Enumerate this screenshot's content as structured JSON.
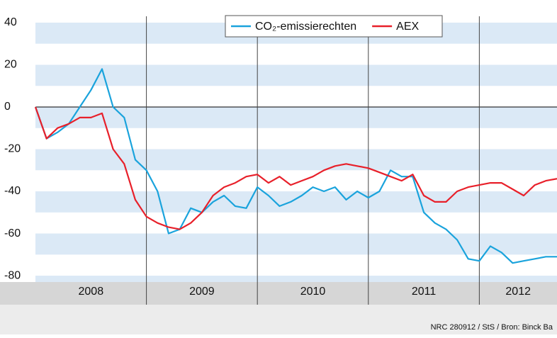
{
  "chart_data": {
    "type": "line",
    "x": [
      2008.0,
      2008.1,
      2008.2,
      2008.3,
      2008.4,
      2008.5,
      2008.6,
      2008.7,
      2008.8,
      2008.9,
      2009.0,
      2009.1,
      2009.2,
      2009.3,
      2009.4,
      2009.5,
      2009.6,
      2009.7,
      2009.8,
      2009.9,
      2010.0,
      2010.1,
      2010.2,
      2010.3,
      2010.4,
      2010.5,
      2010.6,
      2010.7,
      2010.8,
      2010.9,
      2011.0,
      2011.1,
      2011.2,
      2011.3,
      2011.4,
      2011.5,
      2011.6,
      2011.7,
      2011.8,
      2011.9,
      2012.0,
      2012.1,
      2012.2,
      2012.3,
      2012.4,
      2012.5,
      2012.6,
      2012.7
    ],
    "series": [
      {
        "name": "CO₂-emissierechten",
        "color": "#1aa3dc",
        "values": [
          0,
          -15,
          -12,
          -8,
          0,
          8,
          18,
          0,
          -5,
          -25,
          -30,
          -40,
          -60,
          -58,
          -48,
          -50,
          -45,
          -42,
          -47,
          -48,
          -38,
          -42,
          -47,
          -45,
          -42,
          -38,
          -40,
          -38,
          -44,
          -40,
          -43,
          -40,
          -30,
          -33,
          -33,
          -50,
          -55,
          -58,
          -63,
          -72,
          -73,
          -66,
          -69,
          -74,
          -73,
          -72,
          -71,
          -71
        ]
      },
      {
        "name": "AEX",
        "color": "#e8202a",
        "values": [
          0,
          -15,
          -10,
          -8,
          -5,
          -5,
          -3,
          -20,
          -27,
          -44,
          -52,
          -55,
          -57,
          -58,
          -55,
          -50,
          -42,
          -38,
          -36,
          -33,
          -32,
          -36,
          -33,
          -37,
          -35,
          -33,
          -30,
          -28,
          -27,
          -28,
          -29,
          -31,
          -33,
          -35,
          -32,
          -42,
          -45,
          -45,
          -40,
          -38,
          -37,
          -36,
          -36,
          -39,
          -42,
          -37,
          -35,
          -34
        ]
      }
    ],
    "xlim": [
      2008.0,
      2012.7
    ],
    "xticks": [
      {
        "value": 2008.5,
        "label": "2008"
      },
      {
        "value": 2009.5,
        "label": "2009"
      },
      {
        "value": 2010.5,
        "label": "2010"
      },
      {
        "value": 2011.5,
        "label": "2011"
      },
      {
        "value": 2012.35,
        "label": "2012"
      }
    ],
    "year_lines": [
      2009,
      2010,
      2011,
      2012
    ],
    "ylim": [
      -83,
      43
    ],
    "yticks": [
      -80,
      -60,
      -40,
      -20,
      0,
      20,
      40
    ],
    "source": "NRC 280912 / StS / Bron: Binck Ba"
  }
}
